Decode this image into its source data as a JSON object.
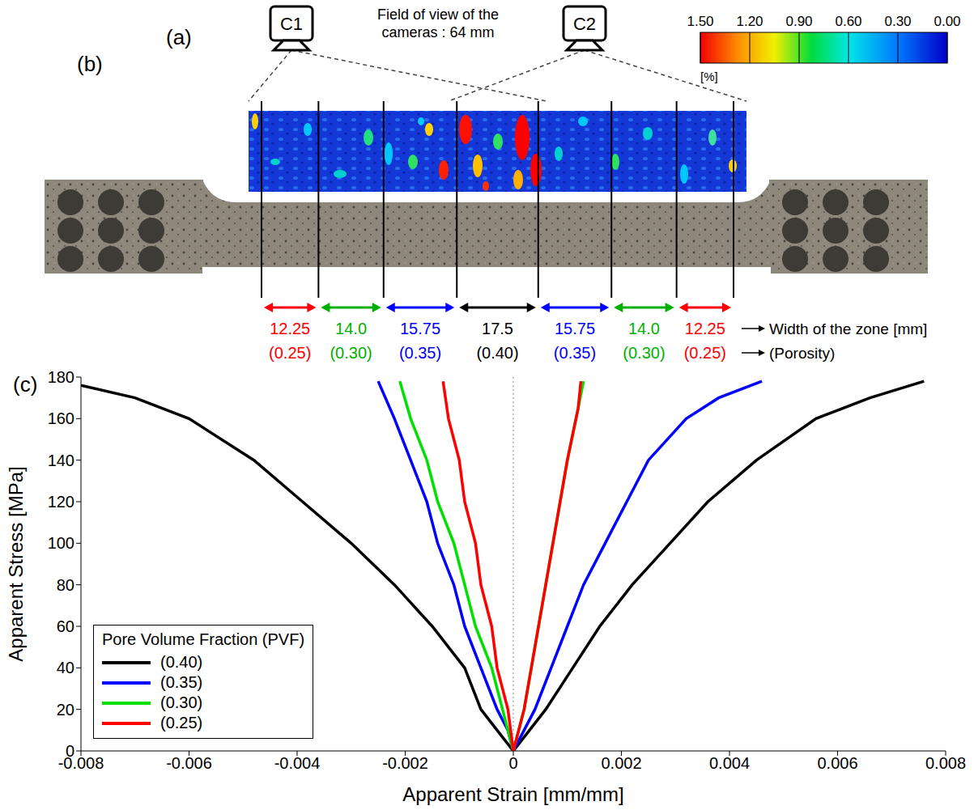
{
  "diagram": {
    "panel_labels": [
      "(a)",
      "(b)",
      "(c)"
    ],
    "cameras": [
      "C1",
      "C2"
    ],
    "camera_note": "Field of view of the cameras : 64 mm",
    "colorbar": {
      "range": [
        0,
        1.5
      ],
      "ticks": [
        {
          "value": 1.5,
          "label": "1.50"
        },
        {
          "value": 1.2,
          "label": "1.20"
        },
        {
          "value": 0.9,
          "label": "0.90"
        },
        {
          "value": 0.6,
          "label": "0.60"
        },
        {
          "value": 0.3,
          "label": "0.30"
        },
        {
          "value": 0,
          "label": "0.00"
        }
      ],
      "unit": "[%]"
    },
    "zones": [
      {
        "width": 12.25,
        "porosity": {
          "value": 0.25,
          "label": "(0.25)"
        },
        "color": "#ff0000"
      },
      {
        "width": {
          "value": 14,
          "label": "14.0"
        },
        "porosity": {
          "value": 0.3,
          "label": "(0.30)"
        },
        "color": "#00b000"
      },
      {
        "width": 15.75,
        "porosity": {
          "value": 0.35,
          "label": "(0.35)"
        },
        "color": "#0000ff"
      },
      {
        "width": 17.5,
        "porosity": {
          "value": 0.4,
          "label": "(0.40)"
        },
        "color": "#000000"
      },
      {
        "width": 15.75,
        "porosity": {
          "value": 0.35,
          "label": "(0.35)"
        },
        "color": "#0000ff"
      },
      {
        "width": {
          "value": 14,
          "label": "14.0"
        },
        "porosity": {
          "value": 0.3,
          "label": "(0.30)"
        },
        "color": "#00b000"
      },
      {
        "width": 12.25,
        "porosity": {
          "value": 0.25,
          "label": "(0.25)"
        },
        "color": "#ff0000"
      }
    ],
    "zone_width_label": "Width of the zone [mm]",
    "zone_porosity_label": "(Porosity)"
  },
  "chart_data": {
    "type": "line",
    "x_label": "Apparent Strain [mm/mm]",
    "y_label": "Apparent Stress [MPa]",
    "xlim": [
      -0.008,
      0.008
    ],
    "xticks": [
      -0.008,
      -0.006,
      -0.004,
      -0.002,
      0,
      0.002,
      0.004,
      0.006,
      0.008
    ],
    "ylim": [
      0,
      180
    ],
    "yticks": [
      0,
      20,
      40,
      60,
      80,
      100,
      120,
      140,
      160,
      180
    ],
    "grid": false,
    "legend": "lower left",
    "legend_title": "Pore Volume Fraction (PVF)",
    "vertical_line_x": 0,
    "series": [
      {
        "name": "(0.40)",
        "color": "#000000",
        "axial": {
          "x": [
            0,
            0.0003,
            0.0006,
            0.0011,
            0.0016,
            0.0022,
            0.0029,
            0.0036,
            0.0045,
            0.0056,
            0.0066,
            0.0076
          ],
          "y": [
            0,
            10,
            20,
            40,
            60,
            80,
            100,
            120,
            140,
            160,
            170,
            178
          ]
        },
        "transverse": {
          "x": [
            0,
            -0.0003,
            -0.0006,
            -0.0009,
            -0.0015,
            -0.0022,
            -0.003,
            -0.0039,
            -0.0048,
            -0.006,
            -0.007,
            -0.008
          ],
          "y": [
            0,
            10,
            20,
            40,
            60,
            80,
            100,
            120,
            140,
            160,
            170,
            176
          ]
        }
      },
      {
        "name": "(0.35)",
        "color": "#0000ff",
        "axial": {
          "x": [
            0,
            0.0002,
            0.0004,
            0.0007,
            0.001,
            0.0013,
            0.0017,
            0.0021,
            0.0025,
            0.0032,
            0.0038,
            0.0046
          ],
          "y": [
            0,
            10,
            20,
            40,
            60,
            80,
            100,
            120,
            140,
            160,
            170,
            178
          ]
        },
        "transverse": {
          "x": [
            0,
            -0.0001,
            -0.0003,
            -0.0006,
            -0.0009,
            -0.0011,
            -0.0014,
            -0.0016,
            -0.0019,
            -0.0022,
            -0.0025
          ],
          "y": [
            0,
            10,
            20,
            40,
            60,
            80,
            100,
            120,
            140,
            160,
            178
          ]
        }
      },
      {
        "name": "(0.30)",
        "color": "#00e000",
        "axial": {
          "x": [
            0,
            0.0001,
            0.0002,
            0.0004,
            0.0006,
            0.0008,
            0.001,
            0.0012,
            0.0013
          ],
          "y": [
            0,
            10,
            20,
            50,
            80,
            110,
            140,
            165,
            178
          ]
        },
        "transverse": {
          "x": [
            0,
            -0.0001,
            -0.0002,
            -0.0004,
            -0.0007,
            -0.0009,
            -0.0011,
            -0.0014,
            -0.0016,
            -0.0019,
            -0.0021
          ],
          "y": [
            0,
            10,
            20,
            40,
            60,
            80,
            100,
            120,
            140,
            160,
            178
          ]
        }
      },
      {
        "name": "(0.25)",
        "color": "#ff0000",
        "axial": {
          "x": [
            0,
            0.0001,
            0.0002,
            0.0004,
            0.0006,
            0.0008,
            0.001,
            0.0012,
            0.00125
          ],
          "y": [
            0,
            10,
            20,
            50,
            80,
            110,
            140,
            165,
            178
          ]
        },
        "transverse": {
          "x": [
            0,
            -0.0001,
            -0.0003,
            -0.0004,
            -0.0006,
            -0.0007,
            -0.0009,
            -0.001,
            -0.0012,
            -0.0013
          ],
          "y": [
            0,
            20,
            40,
            60,
            80,
            100,
            120,
            140,
            160,
            178
          ]
        }
      }
    ]
  }
}
